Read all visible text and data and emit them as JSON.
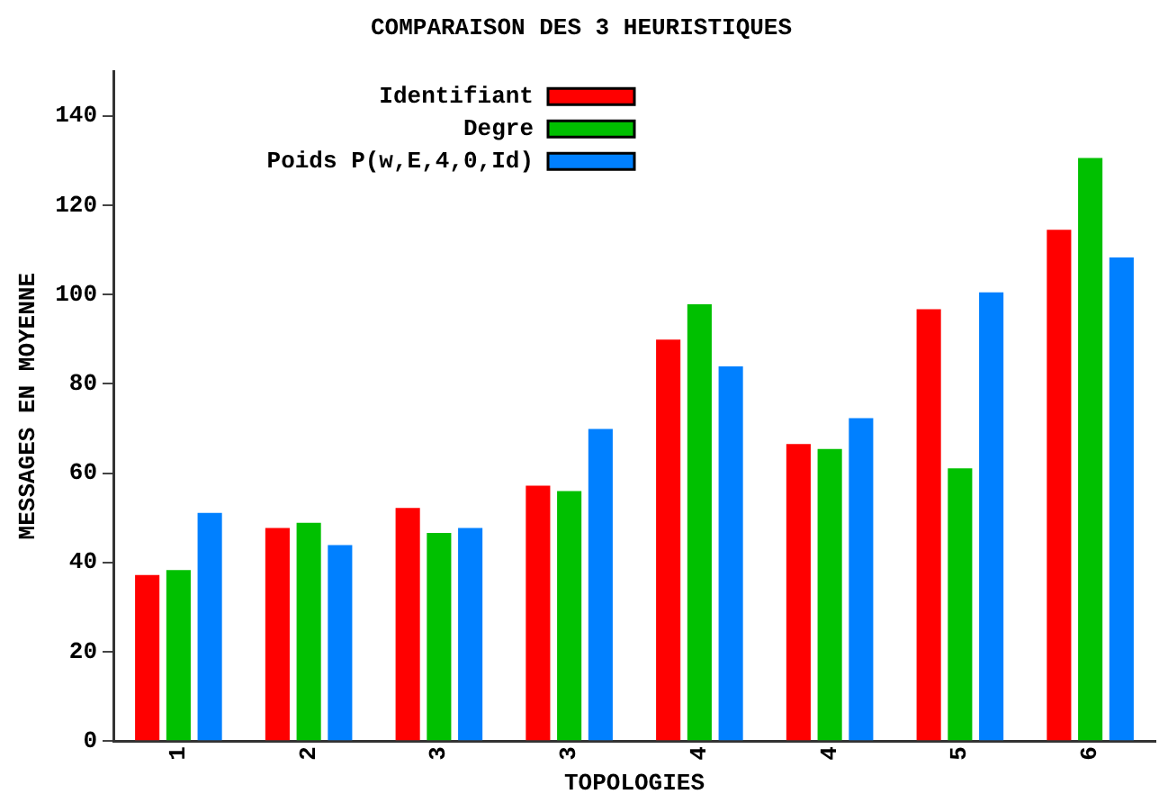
{
  "chart_data": {
    "type": "bar",
    "title": "COMPARAISON DES 3 HEURISTIQUES",
    "xlabel": "TOPOLOGIES",
    "ylabel": "MESSAGES EN MOYENNE",
    "categories": [
      "1",
      "2",
      "3",
      "3",
      "4",
      "4",
      "5",
      "6"
    ],
    "series": [
      {
        "name": "Identifiant",
        "color": "#ff0000",
        "values": [
          37.2,
          47.7,
          52.2,
          57.2,
          89.9,
          66.5,
          96.7,
          114.5
        ]
      },
      {
        "name": "Degre",
        "color": "#00c000",
        "values": [
          38.3,
          48.9,
          46.6,
          56.0,
          97.8,
          65.4,
          61.1,
          130.6
        ]
      },
      {
        "name": "Poids P(w,E,4,0,Id)",
        "color": "#0080ff",
        "values": [
          51.1,
          43.9,
          47.7,
          69.9,
          83.9,
          72.3,
          100.5,
          108.3
        ]
      }
    ],
    "ylim": [
      0,
      150
    ],
    "yticks": [
      0,
      20,
      40,
      60,
      80,
      100,
      120,
      140
    ],
    "grid": false,
    "legend": "top"
  }
}
